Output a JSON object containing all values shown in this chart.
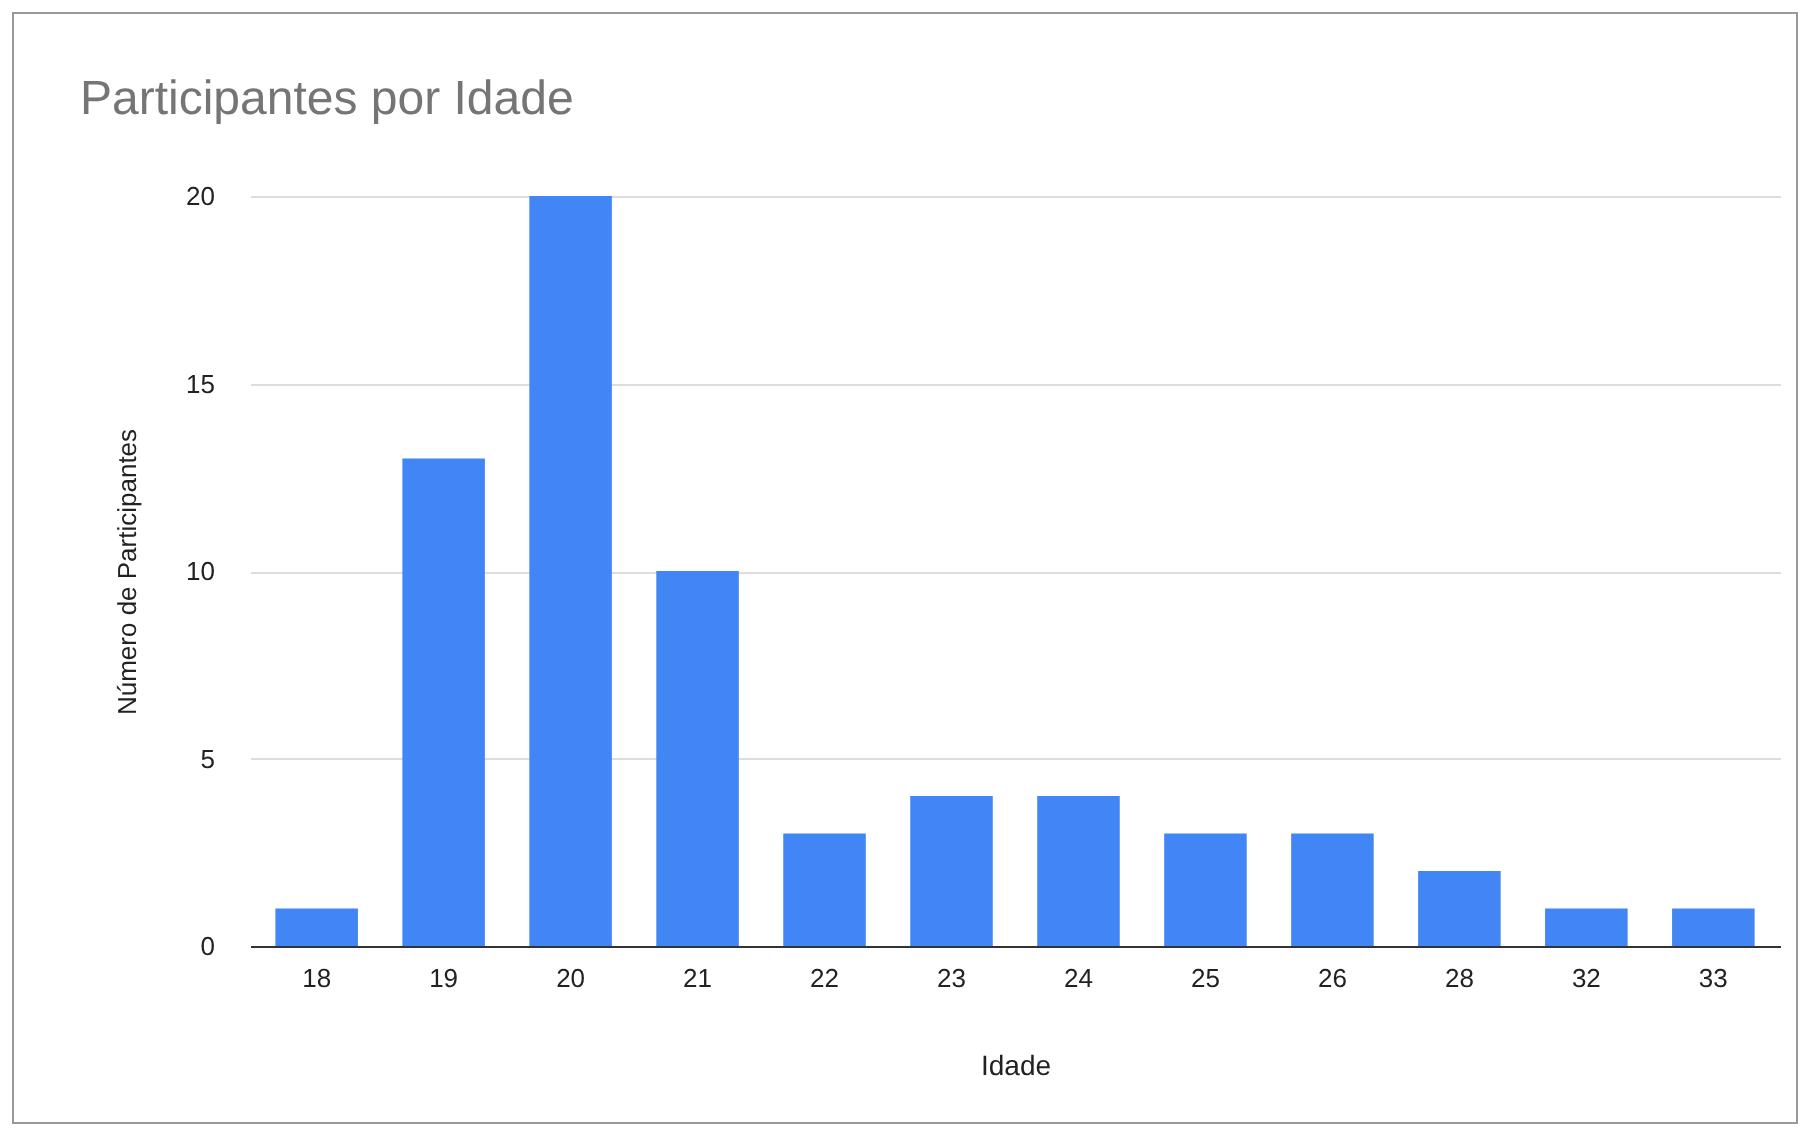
{
  "chart_data": {
    "type": "bar",
    "title": "Participantes por Idade",
    "xlabel": "Idade",
    "ylabel": "Número de Participantes",
    "categories": [
      "18",
      "19",
      "20",
      "21",
      "22",
      "23",
      "24",
      "25",
      "26",
      "28",
      "32",
      "33"
    ],
    "values": [
      1,
      13,
      20,
      10,
      3,
      4,
      4,
      3,
      3,
      2,
      1,
      1
    ],
    "color": "#4285f4",
    "ylim": [
      0,
      20
    ],
    "yticks": [
      0,
      5,
      10,
      15,
      20
    ],
    "grid": "y"
  }
}
